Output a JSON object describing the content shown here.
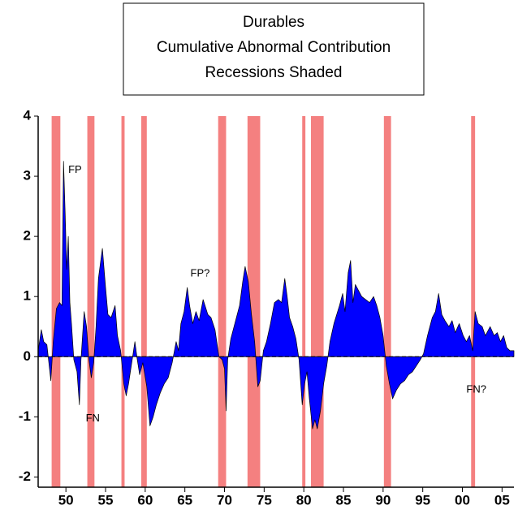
{
  "chart_data": {
    "type": "area",
    "title_lines": [
      "Durables",
      "Cumulative Abnormal Contribution",
      "Recessions Shaded"
    ],
    "color": "#0000ff",
    "recession_color": "#f48080",
    "xlim": [
      1946.5,
      2006.5
    ],
    "ylim": [
      -2.17,
      4
    ],
    "xticks": [
      {
        "value": 1950,
        "label": "50"
      },
      {
        "value": 1955,
        "label": "55"
      },
      {
        "value": 1960,
        "label": "60"
      },
      {
        "value": 1965,
        "label": "65"
      },
      {
        "value": 1970,
        "label": "70"
      },
      {
        "value": 1975,
        "label": "75"
      },
      {
        "value": 1980,
        "label": "80"
      },
      {
        "value": 1985,
        "label": "85"
      },
      {
        "value": 1990,
        "label": "90"
      },
      {
        "value": 1995,
        "label": "95"
      },
      {
        "value": 2000,
        "label": "00"
      },
      {
        "value": 2005,
        "label": "05"
      }
    ],
    "yticks": [
      -2,
      -1,
      0,
      1,
      2,
      3,
      4
    ],
    "recessions": [
      [
        1948.2,
        1949.3
      ],
      [
        1952.7,
        1953.6
      ],
      [
        1957.0,
        1957.4
      ],
      [
        1959.5,
        1960.2
      ],
      [
        1969.2,
        1970.2
      ],
      [
        1972.9,
        1974.5
      ],
      [
        1979.8,
        1980.2
      ],
      [
        1980.9,
        1982.5
      ],
      [
        1990.1,
        1991.0
      ],
      [
        2001.1,
        2001.6
      ]
    ],
    "annotations": [
      {
        "text": "FP",
        "x": 1950.3,
        "y": 3.1
      },
      {
        "text": "FN",
        "x": 1952.5,
        "y": -1.03
      },
      {
        "text": "FP?",
        "x": 1965.7,
        "y": 1.38
      },
      {
        "text": "FN?",
        "x": 2000.5,
        "y": -0.55
      }
    ],
    "x": [
      1946.5,
      1946.9,
      1947.2,
      1947.6,
      1948.1,
      1948.4,
      1948.8,
      1949.2,
      1949.5,
      1949.7,
      1949.9,
      1950.1,
      1950.3,
      1950.5,
      1950.7,
      1951.0,
      1951.4,
      1951.7,
      1951.9,
      1952.3,
      1952.6,
      1952.9,
      1953.2,
      1953.5,
      1953.8,
      1954.1,
      1954.6,
      1955.0,
      1955.3,
      1955.7,
      1956.2,
      1956.5,
      1956.9,
      1957.3,
      1957.6,
      1957.9,
      1958.3,
      1958.7,
      1959.0,
      1959.3,
      1959.7,
      1960.2,
      1960.6,
      1961.0,
      1961.4,
      1961.9,
      1962.4,
      1962.9,
      1963.4,
      1963.9,
      1964.2,
      1964.5,
      1964.9,
      1965.3,
      1965.6,
      1966.0,
      1966.4,
      1966.8,
      1967.3,
      1967.9,
      1968.3,
      1968.8,
      1969.3,
      1969.7,
      1970.0,
      1970.2,
      1970.4,
      1970.8,
      1971.3,
      1971.9,
      1972.3,
      1972.6,
      1973.0,
      1973.4,
      1973.8,
      1974.2,
      1974.5,
      1974.9,
      1975.3,
      1975.8,
      1976.3,
      1976.8,
      1977.2,
      1977.6,
      1977.9,
      1978.2,
      1978.6,
      1979.0,
      1979.4,
      1979.8,
      1980.1,
      1980.4,
      1980.7,
      1981.1,
      1981.4,
      1981.7,
      1982.1,
      1982.5,
      1982.9,
      1983.3,
      1983.8,
      1984.5,
      1984.9,
      1985.2,
      1985.6,
      1985.9,
      1986.2,
      1986.5,
      1986.9,
      1987.3,
      1987.8,
      1988.3,
      1988.8,
      1989.2,
      1989.6,
      1990.0,
      1990.4,
      1990.8,
      1991.2,
      1991.7,
      1992.2,
      1992.7,
      1993.2,
      1993.7,
      1994.2,
      1994.7,
      1995.1,
      1995.6,
      1996.2,
      1996.6,
      1997.0,
      1997.4,
      1997.8,
      1998.3,
      1998.7,
      1999.1,
      1999.6,
      2000.1,
      2000.5,
      2000.9,
      2001.3,
      2001.6,
      2002.0,
      2002.5,
      2002.9,
      2003.5,
      2004.0,
      2004.4,
      2004.8,
      2005.2,
      2005.6,
      2006.0,
      2006.5
    ],
    "values": [
      0.1,
      0.45,
      0.25,
      0.2,
      -0.4,
      0.25,
      0.8,
      0.9,
      0.85,
      3.25,
      2.4,
      1.45,
      2.0,
      0.9,
      0.55,
      -0.05,
      -0.25,
      -0.8,
      -0.05,
      0.75,
      0.5,
      -0.05,
      -0.35,
      -0.1,
      0.5,
      1.3,
      1.8,
      1.15,
      0.7,
      0.65,
      0.85,
      0.35,
      0.1,
      -0.45,
      -0.65,
      -0.45,
      -0.1,
      0.25,
      -0.05,
      -0.3,
      -0.1,
      -0.5,
      -1.15,
      -1.0,
      -0.8,
      -0.6,
      -0.45,
      -0.35,
      -0.1,
      0.25,
      0.1,
      0.55,
      0.75,
      1.15,
      0.85,
      0.55,
      0.75,
      0.6,
      0.95,
      0.7,
      0.65,
      0.45,
      0.0,
      -0.05,
      -0.2,
      -0.9,
      -0.05,
      0.3,
      0.55,
      0.85,
      1.25,
      1.5,
      1.25,
      0.7,
      0.25,
      -0.5,
      -0.4,
      0.1,
      0.25,
      0.55,
      0.9,
      0.95,
      0.9,
      1.3,
      1.0,
      0.65,
      0.5,
      0.3,
      -0.05,
      -0.8,
      -0.45,
      -0.25,
      -0.7,
      -1.2,
      -1.05,
      -1.2,
      -0.9,
      -0.45,
      -0.15,
      0.25,
      0.55,
      0.85,
      1.05,
      0.75,
      1.4,
      1.6,
      0.9,
      1.2,
      1.1,
      1.0,
      0.95,
      0.9,
      1.0,
      0.85,
      0.65,
      0.35,
      -0.15,
      -0.45,
      -0.7,
      -0.55,
      -0.45,
      -0.4,
      -0.3,
      -0.25,
      -0.15,
      -0.05,
      0.05,
      0.35,
      0.65,
      0.75,
      1.05,
      0.7,
      0.6,
      0.5,
      0.6,
      0.4,
      0.55,
      0.35,
      0.25,
      0.35,
      0.1,
      0.75,
      0.55,
      0.5,
      0.35,
      0.5,
      0.35,
      0.4,
      0.25,
      0.35,
      0.15,
      0.1,
      0.1
    ]
  }
}
